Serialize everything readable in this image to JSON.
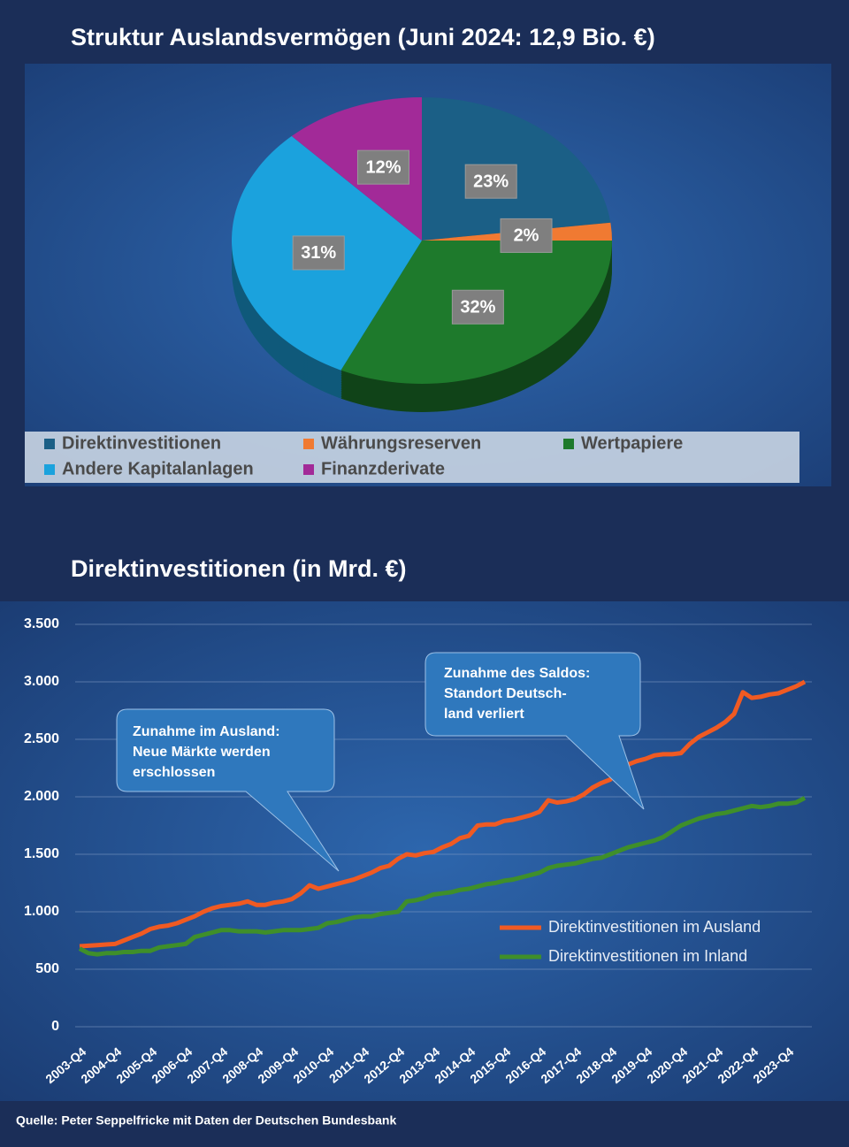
{
  "chart_data": [
    {
      "type": "pie",
      "title": "Struktur Auslandsvermögen (Juni 2024: 12,9 Bio. €)",
      "categories": [
        "Direktinvestitionen",
        "Währungsreserven",
        "Wertpapiere",
        "Andere Kapitalanlagen",
        "Finanzderivate"
      ],
      "values": [
        23,
        2,
        32,
        31,
        12
      ],
      "value_labels": [
        "23%",
        "2%",
        "32%",
        "31%",
        "12%"
      ],
      "colors": [
        "#1b5f86",
        "#f07a32",
        "#1e7a2c",
        "#1ba2dd",
        "#a22a98"
      ]
    },
    {
      "type": "line",
      "title": "Direktinvestitionen (in Mrd. €)",
      "categories": [
        "2003-Q4",
        null,
        null,
        null,
        "2004-Q4",
        null,
        null,
        null,
        "2005-Q4",
        null,
        null,
        null,
        "2006-Q4",
        null,
        null,
        null,
        "2007-Q4",
        null,
        null,
        null,
        "2008-Q4",
        null,
        null,
        null,
        "2009-Q4",
        null,
        null,
        null,
        "2010-Q4",
        null,
        null,
        null,
        "2011-Q4",
        null,
        null,
        null,
        "2012-Q4",
        null,
        null,
        null,
        "2013-Q4",
        null,
        null,
        null,
        "2014-Q4",
        null,
        null,
        null,
        "2015-Q4",
        null,
        null,
        null,
        "2016-Q4",
        null,
        null,
        null,
        "2017-Q4",
        null,
        null,
        null,
        "2018-Q4",
        null,
        null,
        null,
        "2019-Q4",
        null,
        null,
        null,
        "2020-Q4",
        null,
        null,
        null,
        "2021-Q4",
        null,
        null,
        null,
        "2022-Q4",
        null,
        null,
        null,
        "2023-Q4",
        null,
        null
      ],
      "series": [
        {
          "name": "Direktinvestitionen im Ausland",
          "color": "#f05a22",
          "values": [
            700,
            705,
            710,
            715,
            720,
            750,
            780,
            810,
            850,
            870,
            880,
            900,
            930,
            960,
            1000,
            1030,
            1050,
            1060,
            1070,
            1090,
            1060,
            1060,
            1080,
            1090,
            1110,
            1160,
            1230,
            1200,
            1220,
            1240,
            1260,
            1280,
            1310,
            1340,
            1380,
            1400,
            1460,
            1500,
            1490,
            1510,
            1520,
            1560,
            1590,
            1640,
            1660,
            1750,
            1760,
            1760,
            1790,
            1800,
            1820,
            1840,
            1870,
            1970,
            1950,
            1960,
            1980,
            2020,
            2080,
            2120,
            2150,
            2250,
            2280,
            2310,
            2330,
            2360,
            2370,
            2370,
            2380,
            2460,
            2520,
            2560,
            2600,
            2650,
            2720,
            2910,
            2860,
            2870,
            2890,
            2900,
            2930,
            2960,
            3000
          ]
        },
        {
          "name": "Direktinvestitionen im Inland",
          "color": "#3f8f2a",
          "values": [
            680,
            640,
            630,
            640,
            640,
            650,
            650,
            660,
            660,
            690,
            700,
            710,
            720,
            780,
            800,
            820,
            840,
            840,
            830,
            830,
            830,
            820,
            830,
            840,
            840,
            840,
            850,
            860,
            900,
            910,
            930,
            950,
            960,
            960,
            980,
            990,
            1000,
            1090,
            1100,
            1120,
            1150,
            1160,
            1170,
            1190,
            1200,
            1220,
            1240,
            1250,
            1270,
            1280,
            1300,
            1320,
            1340,
            1380,
            1400,
            1410,
            1420,
            1440,
            1460,
            1470,
            1500,
            1530,
            1560,
            1580,
            1600,
            1620,
            1650,
            1700,
            1750,
            1780,
            1810,
            1830,
            1850,
            1860,
            1880,
            1900,
            1920,
            1910,
            1920,
            1940,
            1940,
            1950,
            1990
          ]
        }
      ],
      "ylim": [
        0,
        3500
      ],
      "yticks": [
        0,
        500,
        {
          "value": 1000,
          "label": "1.000"
        },
        {
          "value": 1500,
          "label": "1.500"
        },
        {
          "value": 2000,
          "label": "2.000"
        },
        {
          "value": 2500,
          "label": "2.500"
        },
        {
          "value": 3000,
          "label": "3.000"
        },
        {
          "value": 3500,
          "label": "3.500"
        }
      ],
      "grid": true,
      "annotations": [
        {
          "lines": [
            "Zunahme im Ausland:",
            "Neue Märkte werden",
            "erschlossen"
          ]
        },
        {
          "lines": [
            "Zunahme des Saldos:",
            "Standort Deutsch-",
            "land verliert"
          ]
        }
      ]
    }
  ],
  "source": "Quelle: Peter Seppelfricke mit Daten der Deutschen Bundesbank"
}
